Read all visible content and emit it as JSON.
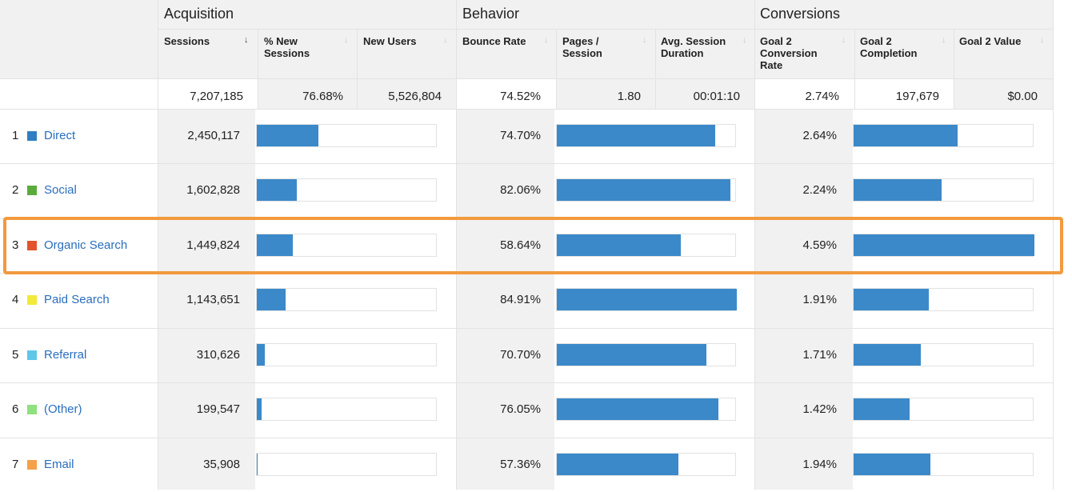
{
  "groups": {
    "acquisition": "Acquisition",
    "behavior": "Behavior",
    "conversions": "Conversions"
  },
  "columns": [
    {
      "key": "sessions",
      "label": "Sessions"
    },
    {
      "key": "pct_new",
      "label": "% New Sessions"
    },
    {
      "key": "new_users",
      "label": "New Users"
    },
    {
      "key": "bounce",
      "label": "Bounce Rate"
    },
    {
      "key": "pages",
      "label": "Pages / Session"
    },
    {
      "key": "duration",
      "label": "Avg. Session Duration"
    },
    {
      "key": "conv_rate",
      "label": "Goal 2 Conversion Rate"
    },
    {
      "key": "completion",
      "label": "Goal 2 Completion"
    },
    {
      "key": "value",
      "label": "Goal 2 Value"
    }
  ],
  "totals": {
    "sessions": "7,207,185",
    "pct_new": "76.68%",
    "new_users": "5,526,804",
    "bounce": "74.52%",
    "pages": "1.80",
    "duration": "00:01:10",
    "conv_rate": "2.74%",
    "completion": "197,679",
    "value": "$0.00"
  },
  "rows": [
    {
      "num": "1",
      "channel": "Direct",
      "color": "#2f7ec1",
      "sessions": "2,450,117",
      "sessions_share": 0.34,
      "bounce": "74.70%",
      "bounce_share": 0.88,
      "conv_rate": "2.64%",
      "conv_share": 0.575
    },
    {
      "num": "2",
      "channel": "Social",
      "color": "#5aab3c",
      "sessions": "1,602,828",
      "sessions_share": 0.222,
      "bounce": "82.06%",
      "bounce_share": 0.966,
      "conv_rate": "2.24%",
      "conv_share": 0.488
    },
    {
      "num": "3",
      "channel": "Organic Search",
      "color": "#e2532d",
      "sessions": "1,449,824",
      "sessions_share": 0.201,
      "bounce": "58.64%",
      "bounce_share": 0.69,
      "conv_rate": "4.59%",
      "conv_share": 1.0
    },
    {
      "num": "4",
      "channel": "Paid Search",
      "color": "#f2ea3b",
      "sessions": "1,143,651",
      "sessions_share": 0.159,
      "bounce": "84.91%",
      "bounce_share": 1.0,
      "conv_rate": "1.91%",
      "conv_share": 0.416
    },
    {
      "num": "5",
      "channel": "Referral",
      "color": "#5ec6e8",
      "sessions": "310,626",
      "sessions_share": 0.043,
      "bounce": "70.70%",
      "bounce_share": 0.833,
      "conv_rate": "1.71%",
      "conv_share": 0.373
    },
    {
      "num": "6",
      "channel": "(Other)",
      "color": "#8fe07f",
      "sessions": "199,547",
      "sessions_share": 0.028,
      "bounce": "76.05%",
      "bounce_share": 0.896,
      "conv_rate": "1.42%",
      "conv_share": 0.309
    },
    {
      "num": "7",
      "channel": "Email",
      "color": "#f5a04b",
      "sessions": "35,908",
      "sessions_share": 0.005,
      "bounce": "57.36%",
      "bounce_share": 0.676,
      "conv_rate": "1.94%",
      "conv_share": 0.423
    }
  ]
}
